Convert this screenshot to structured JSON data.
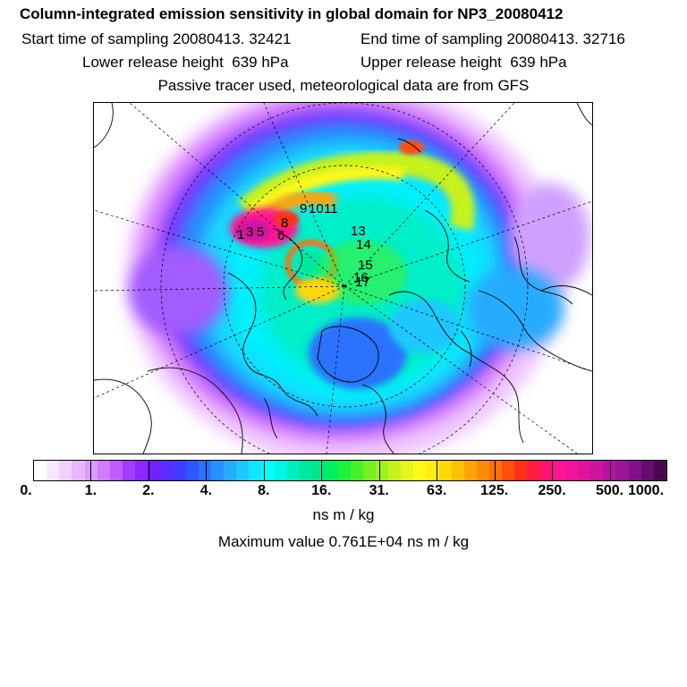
{
  "header": {
    "title": "Column-integrated emission sensitivity in global domain for NP3_20080412",
    "start_sampling": "Start time of sampling 20080413. 32421",
    "end_sampling": "End time of sampling 20080413. 32716",
    "lower_release": "Lower release height  639 hPa",
    "upper_release": "Upper release height  639 hPa",
    "tracer_info": "Passive tracer used, meteorological data are from GFS"
  },
  "map": {
    "projection": "north-polar stereographic",
    "station_labels": [
      {
        "text": "1"
      },
      {
        "text": "3"
      },
      {
        "text": "5"
      },
      {
        "text": "6"
      },
      {
        "text": "8"
      },
      {
        "text": "9"
      },
      {
        "text": "10"
      },
      {
        "text": "11"
      },
      {
        "text": "13"
      },
      {
        "text": "14"
      },
      {
        "text": "15"
      },
      {
        "text": "16"
      },
      {
        "text": "17"
      }
    ]
  },
  "colorbar": {
    "colors": [
      "#ffffff",
      "#f8e8ff",
      "#f0d0ff",
      "#e6b8ff",
      "#dc9cff",
      "#cf7cff",
      "#c05cff",
      "#a23cff",
      "#8a28ff",
      "#6f22ff",
      "#5a2cff",
      "#3f3cff",
      "#2f56ff",
      "#2a72ff",
      "#2a90ff",
      "#26acff",
      "#1ec8ff",
      "#12e6ff",
      "#00ffff",
      "#00f6e0",
      "#00eec0",
      "#00e8a0",
      "#00e884",
      "#00ee60",
      "#1af23c",
      "#46f02a",
      "#78f020",
      "#a0f020",
      "#c8f21e",
      "#e8f41e",
      "#fff81c",
      "#ffec10",
      "#ffd80a",
      "#ffc008",
      "#ffa408",
      "#ff8a08",
      "#ff7008",
      "#ff5010",
      "#ff3018",
      "#ff1a40",
      "#ff1470",
      "#ff1494",
      "#f21498",
      "#e0149c",
      "#cc14a0",
      "#b414a0",
      "#9a1498",
      "#801088",
      "#640c70",
      "#4a0850"
    ],
    "tick_labels": [
      "0.",
      "1.",
      "2.",
      "4.",
      "8.",
      "16.",
      "31.",
      "63.",
      "125.",
      "250.",
      "500.",
      "1000."
    ],
    "units": "ns m / kg",
    "maximum": "Maximum value  0.761E+04 ns m / kg"
  }
}
